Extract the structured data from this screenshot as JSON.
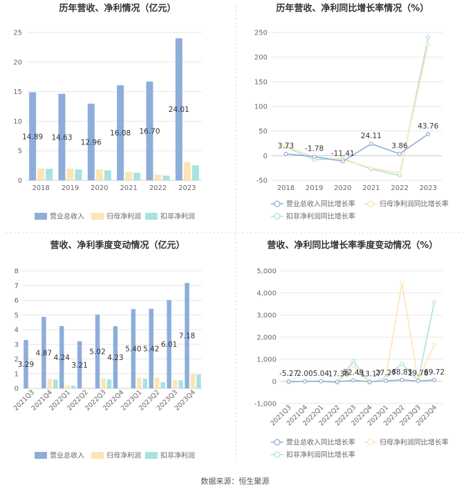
{
  "colors": {
    "revenue": "#8eadda",
    "net_profit": "#fce4b4",
    "deducted_profit": "#a9e2e0",
    "grid": "#e6e6e6",
    "axis_text": "#666666",
    "title": "#333333",
    "divider": "#dddddd"
  },
  "footer": {
    "source": "数据来源：恒生聚源"
  },
  "chart_data": [
    {
      "type": "bar",
      "title": "历年营收、净利情况（亿元）",
      "categories": [
        "2018",
        "2019",
        "2020",
        "2021",
        "2022",
        "2023"
      ],
      "ylim": [
        0,
        25
      ],
      "yticks": [
        0,
        5,
        10,
        15,
        20,
        25
      ],
      "grid": true,
      "legend_position": "bottom",
      "series": [
        {
          "name": "营业总收入",
          "color_key": "revenue",
          "values": [
            14.89,
            14.63,
            12.96,
            16.08,
            16.7,
            24.01
          ],
          "labels": [
            "14.89",
            "14.63",
            "12.96",
            "16.08",
            "16.70",
            "24.01"
          ]
        },
        {
          "name": "归母净利润",
          "color_key": "net_profit",
          "values": [
            2.0,
            2.0,
            1.85,
            1.45,
            0.95,
            3.1
          ]
        },
        {
          "name": "扣非净利润",
          "color_key": "deducted_profit",
          "values": [
            1.95,
            1.85,
            1.7,
            1.3,
            0.8,
            2.55
          ]
        }
      ]
    },
    {
      "type": "line",
      "title": "历年营收、净利同比增长率情况（%）",
      "categories": [
        "2018",
        "2019",
        "2020",
        "2021",
        "2022",
        "2023"
      ],
      "ylim": [
        -50,
        250
      ],
      "yticks": [
        -50,
        0,
        50,
        100,
        150,
        200,
        250
      ],
      "grid": true,
      "legend_position": "bottom",
      "series": [
        {
          "name": "营业总收入同比增长率",
          "color_key": "revenue",
          "values": [
            3.73,
            -1.78,
            -11.41,
            24.11,
            3.86,
            43.76
          ],
          "labels": [
            "3.73",
            "-1.78",
            "-11.41",
            "24.11",
            "3.86",
            "43.76"
          ]
        },
        {
          "name": "归母净利润同比增长率",
          "color_key": "net_profit",
          "values": [
            20,
            -3,
            -8,
            -25,
            -35,
            225
          ]
        },
        {
          "name": "扣非净利润同比增长率",
          "color_key": "deducted_profit",
          "values": [
            18,
            -8,
            -6,
            -27,
            -40,
            240
          ]
        }
      ]
    },
    {
      "type": "bar",
      "title": "营收、净利季度变动情况（亿元）",
      "categories": [
        "2021Q3",
        "2021Q4",
        "2022Q1",
        "2022Q2",
        "2022Q3",
        "2022Q4",
        "2023Q1",
        "2023Q2",
        "2023Q3",
        "2023Q4"
      ],
      "ylim": [
        0,
        8
      ],
      "yticks": [
        0,
        1,
        2,
        3,
        4,
        5,
        6,
        7,
        8
      ],
      "grid": true,
      "legend_position": "bottom",
      "series": [
        {
          "name": "营业总收入",
          "color_key": "revenue",
          "values": [
            3.29,
            4.87,
            4.24,
            3.21,
            5.02,
            4.23,
            5.4,
            5.42,
            6.01,
            7.18
          ],
          "labels": [
            "3.29",
            "4.87",
            "4.24",
            "3.21",
            "5.02",
            "4.23",
            "5.40",
            "5.42",
            "6.01",
            "7.18"
          ]
        },
        {
          "name": "归母净利润",
          "color_key": "net_profit",
          "values": [
            0.03,
            0.65,
            0.22,
            0.05,
            0.68,
            0.04,
            0.72,
            0.73,
            0.57,
            1.0
          ]
        },
        {
          "name": "扣非净利润",
          "color_key": "deducted_profit",
          "values": [
            0.02,
            0.6,
            0.18,
            0.03,
            0.62,
            0.02,
            0.65,
            0.42,
            0.55,
            0.95
          ]
        }
      ]
    },
    {
      "type": "line",
      "title": "营收、净利同比增长率季度变动情况（%）",
      "categories": [
        "2021Q3",
        "2021Q4",
        "2022Q1",
        "2022Q2",
        "2022Q3",
        "2022Q4",
        "2023Q1",
        "2023Q2",
        "2023Q3",
        "2023Q4"
      ],
      "ylim": [
        -1000,
        5000
      ],
      "yticks": [
        -1000,
        0,
        1000,
        2000,
        3000,
        4000,
        5000
      ],
      "ytick_labels": [
        "-1,000",
        "0",
        "1,000",
        "2,000",
        "3,000",
        "4,000",
        "5,000"
      ],
      "grid": true,
      "legend_position": "bottom",
      "series": [
        {
          "name": "营业总收入同比增长率",
          "color_key": "revenue",
          "values": [
            -5.27,
            2.0,
            5.04,
            -17.3,
            52.49,
            -13.17,
            27.27,
            68.83,
            19.78,
            69.72
          ],
          "labels": [
            "-5.27",
            "2.00",
            "5.04",
            "-17.30",
            "52.49",
            "-13.17",
            "27.27",
            "68.83",
            "19.78",
            "69.72"
          ]
        },
        {
          "name": "归母净利润同比增长率",
          "color_key": "net_profit",
          "values": [
            -30,
            10,
            20,
            -50,
            700,
            -60,
            150,
            4450,
            50,
            1650
          ]
        },
        {
          "name": "扣非净利润同比增长率",
          "color_key": "deducted_profit",
          "values": [
            -40,
            5,
            15,
            -60,
            920,
            -70,
            180,
            800,
            40,
            3580
          ]
        }
      ]
    }
  ]
}
